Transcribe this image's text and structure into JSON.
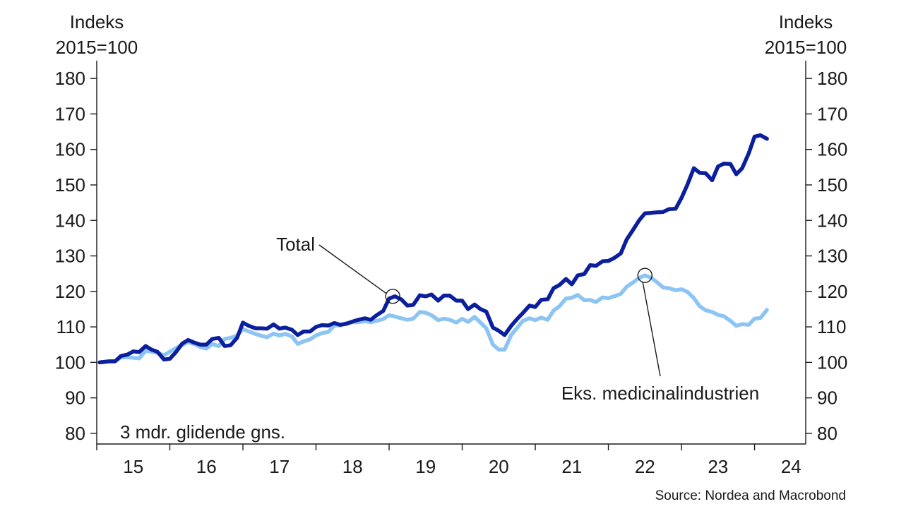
{
  "chart_data": {
    "type": "line",
    "left_axis_title": [
      "Indeks",
      "2015=100"
    ],
    "right_axis_title": [
      "Indeks",
      "2015=100"
    ],
    "ylim": [
      77,
      185
    ],
    "yticks": [
      80,
      90,
      100,
      110,
      120,
      130,
      140,
      150,
      160,
      170,
      180
    ],
    "xlim": [
      2014.5,
      2024.2
    ],
    "xtick_labels": [
      {
        "x": 2015.0,
        "label": "15"
      },
      {
        "x": 2016.0,
        "label": "16"
      },
      {
        "x": 2017.0,
        "label": "17"
      },
      {
        "x": 2018.0,
        "label": "18"
      },
      {
        "x": 2019.0,
        "label": "19"
      },
      {
        "x": 2020.0,
        "label": "20"
      },
      {
        "x": 2021.0,
        "label": "21"
      },
      {
        "x": 2022.0,
        "label": "22"
      },
      {
        "x": 2023.0,
        "label": "23"
      },
      {
        "x": 2024.0,
        "label": "24"
      }
    ],
    "year_boundaries": [
      2014.5,
      2015.5,
      2016.5,
      2017.5,
      2018.5,
      2019.5,
      2020.5,
      2021.5,
      2022.5,
      2023.5
    ],
    "note": "3 mdr. glidende gns.",
    "series": [
      {
        "name": "Total",
        "color": "#0b1f9c",
        "points": [
          [
            2014.54,
            100.0
          ],
          [
            2014.67,
            100.3
          ],
          [
            2014.75,
            100.3
          ],
          [
            2014.83,
            101.8
          ],
          [
            2014.92,
            102.2
          ],
          [
            2015.0,
            103.1
          ],
          [
            2015.08,
            102.9
          ],
          [
            2015.17,
            104.6
          ],
          [
            2015.25,
            103.6
          ],
          [
            2015.33,
            103.0
          ],
          [
            2015.42,
            100.8
          ],
          [
            2015.5,
            101.0
          ],
          [
            2015.58,
            102.8
          ],
          [
            2015.67,
            105.3
          ],
          [
            2015.75,
            106.3
          ],
          [
            2015.83,
            105.6
          ],
          [
            2015.92,
            105.0
          ],
          [
            2016.0,
            105.0
          ],
          [
            2016.08,
            106.6
          ],
          [
            2016.17,
            106.9
          ],
          [
            2016.25,
            104.6
          ],
          [
            2016.33,
            104.8
          ],
          [
            2016.42,
            106.9
          ],
          [
            2016.5,
            111.2
          ],
          [
            2016.58,
            110.3
          ],
          [
            2016.67,
            109.6
          ],
          [
            2016.75,
            109.6
          ],
          [
            2016.83,
            109.5
          ],
          [
            2016.92,
            110.7
          ],
          [
            2017.0,
            109.5
          ],
          [
            2017.08,
            109.8
          ],
          [
            2017.17,
            109.2
          ],
          [
            2017.25,
            107.7
          ],
          [
            2017.33,
            108.7
          ],
          [
            2017.42,
            108.7
          ],
          [
            2017.5,
            110.0
          ],
          [
            2017.58,
            110.5
          ],
          [
            2017.67,
            110.4
          ],
          [
            2017.75,
            111.1
          ],
          [
            2017.83,
            110.6
          ],
          [
            2017.92,
            110.9
          ],
          [
            2018.0,
            111.5
          ],
          [
            2018.08,
            112.0
          ],
          [
            2018.17,
            112.4
          ],
          [
            2018.25,
            112.0
          ],
          [
            2018.33,
            113.3
          ],
          [
            2018.42,
            114.5
          ],
          [
            2018.5,
            118.0
          ],
          [
            2018.58,
            118.6
          ],
          [
            2018.67,
            117.7
          ],
          [
            2018.75,
            116.0
          ],
          [
            2018.83,
            116.2
          ],
          [
            2018.92,
            118.9
          ],
          [
            2019.0,
            118.6
          ],
          [
            2019.08,
            119.1
          ],
          [
            2019.17,
            117.4
          ],
          [
            2019.25,
            118.8
          ],
          [
            2019.33,
            118.8
          ],
          [
            2019.42,
            117.4
          ],
          [
            2019.5,
            117.4
          ],
          [
            2019.58,
            115.0
          ],
          [
            2019.67,
            116.3
          ],
          [
            2019.75,
            115.0
          ],
          [
            2019.83,
            114.3
          ],
          [
            2019.92,
            109.8
          ],
          [
            2020.0,
            108.9
          ],
          [
            2020.08,
            107.7
          ],
          [
            2020.17,
            110.3
          ],
          [
            2020.25,
            112.2
          ],
          [
            2020.33,
            113.9
          ],
          [
            2020.42,
            116.0
          ],
          [
            2020.5,
            115.6
          ],
          [
            2020.58,
            117.6
          ],
          [
            2020.67,
            117.8
          ],
          [
            2020.75,
            120.9
          ],
          [
            2020.83,
            121.8
          ],
          [
            2020.92,
            123.5
          ],
          [
            2021.0,
            122.0
          ],
          [
            2021.08,
            124.5
          ],
          [
            2021.17,
            124.9
          ],
          [
            2021.25,
            127.4
          ],
          [
            2021.33,
            127.2
          ],
          [
            2021.42,
            128.5
          ],
          [
            2021.5,
            128.6
          ],
          [
            2021.58,
            129.4
          ],
          [
            2021.67,
            130.7
          ],
          [
            2021.75,
            134.6
          ],
          [
            2021.83,
            137.1
          ],
          [
            2021.92,
            140.0
          ],
          [
            2022.0,
            142.0
          ],
          [
            2022.08,
            142.1
          ],
          [
            2022.17,
            142.3
          ],
          [
            2022.25,
            142.4
          ],
          [
            2022.33,
            143.2
          ],
          [
            2022.42,
            143.3
          ],
          [
            2022.5,
            146.3
          ],
          [
            2022.58,
            150.0
          ],
          [
            2022.67,
            154.7
          ],
          [
            2022.75,
            153.4
          ],
          [
            2022.83,
            153.3
          ],
          [
            2022.92,
            151.3
          ],
          [
            2023.0,
            155.2
          ],
          [
            2023.08,
            156.0
          ],
          [
            2023.17,
            155.9
          ],
          [
            2023.25,
            153.0
          ],
          [
            2023.33,
            154.7
          ],
          [
            2023.42,
            158.9
          ],
          [
            2023.5,
            163.6
          ],
          [
            2023.58,
            164.0
          ],
          [
            2023.67,
            163.0
          ]
        ]
      },
      {
        "name": "Eks. medicinalindustrien",
        "color": "#8cc4f4",
        "points": [
          [
            2014.54,
            100.0
          ],
          [
            2014.67,
            100.3
          ],
          [
            2014.75,
            100.3
          ],
          [
            2014.83,
            101.4
          ],
          [
            2014.92,
            101.4
          ],
          [
            2015.0,
            101.3
          ],
          [
            2015.08,
            101.1
          ],
          [
            2015.17,
            103.3
          ],
          [
            2015.25,
            103.0
          ],
          [
            2015.33,
            102.7
          ],
          [
            2015.42,
            102.0
          ],
          [
            2015.5,
            103.0
          ],
          [
            2015.58,
            104.0
          ],
          [
            2015.67,
            104.9
          ],
          [
            2015.75,
            105.7
          ],
          [
            2015.83,
            105.2
          ],
          [
            2015.92,
            104.3
          ],
          [
            2016.0,
            103.9
          ],
          [
            2016.08,
            105.2
          ],
          [
            2016.17,
            104.6
          ],
          [
            2016.25,
            106.6
          ],
          [
            2016.33,
            106.9
          ],
          [
            2016.42,
            107.6
          ],
          [
            2016.5,
            109.4
          ],
          [
            2016.58,
            108.7
          ],
          [
            2016.67,
            108.0
          ],
          [
            2016.75,
            107.5
          ],
          [
            2016.83,
            107.1
          ],
          [
            2016.92,
            108.1
          ],
          [
            2017.0,
            107.6
          ],
          [
            2017.08,
            108.0
          ],
          [
            2017.17,
            107.3
          ],
          [
            2017.25,
            105.2
          ],
          [
            2017.33,
            105.9
          ],
          [
            2017.42,
            106.5
          ],
          [
            2017.5,
            107.6
          ],
          [
            2017.58,
            108.2
          ],
          [
            2017.67,
            108.6
          ],
          [
            2017.75,
            110.4
          ],
          [
            2017.83,
            110.4
          ],
          [
            2017.92,
            111.1
          ],
          [
            2018.0,
            111.3
          ],
          [
            2018.08,
            111.3
          ],
          [
            2018.17,
            111.6
          ],
          [
            2018.25,
            111.3
          ],
          [
            2018.33,
            111.7
          ],
          [
            2018.42,
            112.2
          ],
          [
            2018.5,
            113.3
          ],
          [
            2018.58,
            112.9
          ],
          [
            2018.67,
            112.4
          ],
          [
            2018.75,
            112.0
          ],
          [
            2018.83,
            112.3
          ],
          [
            2018.92,
            114.2
          ],
          [
            2019.0,
            114.0
          ],
          [
            2019.08,
            113.3
          ],
          [
            2019.17,
            111.9
          ],
          [
            2019.25,
            112.3
          ],
          [
            2019.33,
            112.0
          ],
          [
            2019.42,
            111.2
          ],
          [
            2019.5,
            112.3
          ],
          [
            2019.58,
            111.4
          ],
          [
            2019.67,
            112.8
          ],
          [
            2019.75,
            111.2
          ],
          [
            2019.83,
            109.6
          ],
          [
            2019.92,
            105.0
          ],
          [
            2020.0,
            103.6
          ],
          [
            2020.08,
            103.6
          ],
          [
            2020.17,
            107.7
          ],
          [
            2020.25,
            109.7
          ],
          [
            2020.33,
            111.7
          ],
          [
            2020.42,
            112.4
          ],
          [
            2020.5,
            111.9
          ],
          [
            2020.58,
            112.6
          ],
          [
            2020.67,
            112.0
          ],
          [
            2020.75,
            114.6
          ],
          [
            2020.83,
            115.8
          ],
          [
            2020.92,
            118.0
          ],
          [
            2021.0,
            118.2
          ],
          [
            2021.08,
            119.0
          ],
          [
            2021.17,
            117.5
          ],
          [
            2021.25,
            117.6
          ],
          [
            2021.33,
            117.0
          ],
          [
            2021.42,
            118.3
          ],
          [
            2021.5,
            118.1
          ],
          [
            2021.58,
            118.6
          ],
          [
            2021.67,
            119.3
          ],
          [
            2021.75,
            121.3
          ],
          [
            2021.83,
            122.4
          ],
          [
            2021.92,
            123.8
          ],
          [
            2022.0,
            124.5
          ],
          [
            2022.08,
            123.9
          ],
          [
            2022.17,
            122.5
          ],
          [
            2022.25,
            121.1
          ],
          [
            2022.33,
            120.9
          ],
          [
            2022.42,
            120.3
          ],
          [
            2022.5,
            120.6
          ],
          [
            2022.58,
            119.9
          ],
          [
            2022.67,
            118.1
          ],
          [
            2022.75,
            115.8
          ],
          [
            2022.83,
            114.7
          ],
          [
            2022.92,
            114.2
          ],
          [
            2023.0,
            113.4
          ],
          [
            2023.08,
            113.0
          ],
          [
            2023.17,
            111.7
          ],
          [
            2023.25,
            110.3
          ],
          [
            2023.33,
            110.8
          ],
          [
            2023.42,
            110.6
          ],
          [
            2023.5,
            112.3
          ],
          [
            2023.58,
            112.5
          ],
          [
            2023.67,
            114.8
          ]
        ]
      }
    ],
    "annotations": [
      {
        "text": "Total",
        "series": "Total",
        "x": 2018.55,
        "y": 118.6
      },
      {
        "text": "Eks. medicinalindustrien",
        "series": "Eks. medicinalindustrien",
        "x": 2022.0,
        "y": 124.5
      }
    ],
    "source": "Source: Nordea and Macrobond"
  }
}
